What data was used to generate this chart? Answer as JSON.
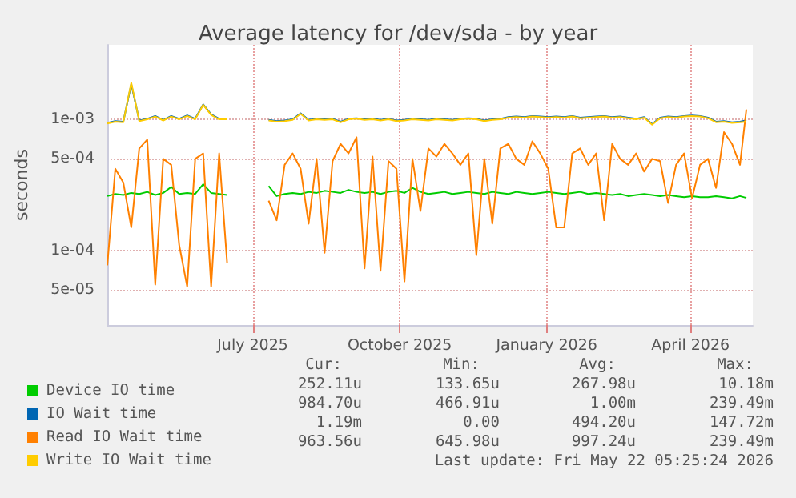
{
  "chart_data": {
    "type": "line",
    "title": "Average latency for /dev/sda - by year",
    "ylabel": "seconds",
    "log": "y",
    "grid": true,
    "legend": "bottom left",
    "xlim": [
      "2025-04-16",
      "2026-05-25"
    ],
    "xticks": [
      {
        "value": "2025-07-16",
        "label": "July 2025"
      },
      {
        "value": "2025-10-16",
        "label": "October 2025"
      },
      {
        "value": "2026-01-16",
        "label": "January 2026"
      },
      {
        "value": "2026-04-16",
        "label": "April 2026"
      }
    ],
    "ylim": [
      2.7e-05,
      0.0037
    ],
    "yticks": [
      {
        "value": 5e-05,
        "label": "5e-05"
      },
      {
        "value": 0.0001,
        "label": "1e-04"
      },
      {
        "value": 0.0005,
        "label": "5e-04"
      },
      {
        "value": 0.001,
        "label": "1e-03"
      }
    ],
    "x": [
      "2025-04-16",
      "2025-04-21",
      "2025-04-26",
      "2025-05-01",
      "2025-05-06",
      "2025-05-11",
      "2025-05-16",
      "2025-05-21",
      "2025-05-26",
      "2025-05-31",
      "2025-06-05",
      "2025-06-10",
      "2025-06-15",
      "2025-06-20",
      "2025-06-25",
      "2025-06-30",
      "2025-07-12",
      "2025-07-26",
      "2025-07-31",
      "2025-08-05",
      "2025-08-10",
      "2025-08-15",
      "2025-08-20",
      "2025-08-25",
      "2025-08-30",
      "2025-09-04",
      "2025-09-09",
      "2025-09-14",
      "2025-09-19",
      "2025-09-24",
      "2025-09-29",
      "2025-10-04",
      "2025-10-09",
      "2025-10-14",
      "2025-10-19",
      "2025-10-24",
      "2025-10-29",
      "2025-11-03",
      "2025-11-08",
      "2025-11-13",
      "2025-11-18",
      "2025-11-23",
      "2025-11-28",
      "2025-12-03",
      "2025-12-08",
      "2025-12-13",
      "2025-12-18",
      "2025-12-23",
      "2025-12-28",
      "2026-01-02",
      "2026-01-07",
      "2026-01-12",
      "2026-01-17",
      "2026-01-22",
      "2026-01-27",
      "2026-02-01",
      "2026-02-06",
      "2026-02-11",
      "2026-02-16",
      "2026-02-21",
      "2026-02-26",
      "2026-03-03",
      "2026-03-08",
      "2026-03-13",
      "2026-03-18",
      "2026-03-23",
      "2026-03-28",
      "2026-04-02",
      "2026-04-07",
      "2026-04-12",
      "2026-04-17",
      "2026-04-22",
      "2026-04-27",
      "2026-05-02",
      "2026-05-07",
      "2026-05-12",
      "2026-05-17",
      "2026-05-21"
    ],
    "series": [
      {
        "name": "Device IO time",
        "color": "#00cc00",
        "values": [
          0.00026,
          0.00027,
          0.000265,
          0.000275,
          0.00027,
          0.00028,
          0.000265,
          0.000275,
          0.000305,
          0.00027,
          0.000275,
          0.00027,
          0.00032,
          0.000275,
          0.00027,
          0.000265,
          null,
          0.00031,
          0.00026,
          0.00027,
          0.000275,
          0.00027,
          0.00028,
          0.000275,
          0.000285,
          0.00028,
          0.000275,
          0.00029,
          0.00028,
          0.000275,
          0.00028,
          0.00027,
          0.00028,
          0.000285,
          0.000275,
          0.0003,
          0.00028,
          0.00027,
          0.000275,
          0.00028,
          0.00027,
          0.000275,
          0.00028,
          0.000275,
          0.00027,
          0.00028,
          0.000275,
          0.00027,
          0.00028,
          0.000275,
          0.00027,
          0.000275,
          0.00028,
          0.000275,
          0.00027,
          0.000275,
          0.00028,
          0.00027,
          0.000275,
          0.00027,
          0.000265,
          0.00027,
          0.00026,
          0.000265,
          0.00027,
          0.000265,
          0.00026,
          0.000265,
          0.00026,
          0.000255,
          0.00026,
          0.000255,
          0.000255,
          0.00026,
          0.000255,
          0.00025,
          0.00026,
          0.000252
        ]
      },
      {
        "name": "IO Wait time",
        "color": "#0066b3",
        "values": [
          0.00094,
          0.00097,
          0.00096,
          0.00185,
          0.00098,
          0.00101,
          0.00106,
          0.00099,
          0.00106,
          0.00101,
          0.00107,
          0.00101,
          0.0013,
          0.00109,
          0.00101,
          0.00101,
          null,
          0.00099,
          0.00097,
          0.00098,
          0.001,
          0.00111,
          0.00099,
          0.00101,
          0.001,
          0.00101,
          0.00096,
          0.00101,
          0.00102,
          0.001,
          0.00101,
          0.00099,
          0.00101,
          0.00098,
          0.00099,
          0.00101,
          0.001,
          0.00099,
          0.00101,
          0.001,
          0.00099,
          0.00101,
          0.00102,
          0.00101,
          0.00098,
          0.001,
          0.00101,
          0.00104,
          0.00105,
          0.00104,
          0.00106,
          0.00105,
          0.00104,
          0.00105,
          0.00104,
          0.00106,
          0.00103,
          0.00104,
          0.00105,
          0.00106,
          0.00104,
          0.00105,
          0.00103,
          0.00101,
          0.00104,
          0.00092,
          0.00103,
          0.00105,
          0.00104,
          0.00106,
          0.00107,
          0.00106,
          0.00103,
          0.00096,
          0.00097,
          0.00095,
          0.00096,
          0.000985
        ]
      },
      {
        "name": "Read IO Wait time",
        "color": "#ff8000",
        "values": [
          7.7e-05,
          0.00042,
          0.00033,
          0.00015,
          0.0006,
          0.0007,
          5.5e-05,
          0.0005,
          0.00045,
          0.00011,
          5.3e-05,
          0.0005,
          0.00055,
          5.3e-05,
          0.00055,
          8e-05,
          null,
          0.00024,
          0.00017,
          0.00045,
          0.00055,
          0.00042,
          0.00016,
          0.0005,
          9.6e-05,
          0.00048,
          0.00065,
          0.00055,
          0.00073,
          7.3e-05,
          0.00052,
          7e-05,
          0.00048,
          0.00042,
          5.8e-05,
          0.0005,
          0.0002,
          0.0006,
          0.00052,
          0.00065,
          0.00055,
          0.00045,
          0.00055,
          9.2e-05,
          0.0005,
          0.00016,
          0.0006,
          0.00065,
          0.0005,
          0.00045,
          0.00068,
          0.00055,
          0.00042,
          0.00015,
          0.00015,
          0.00055,
          0.0006,
          0.00045,
          0.00055,
          0.00017,
          0.00065,
          0.0005,
          0.00045,
          0.00055,
          0.0004,
          0.0005,
          0.00048,
          0.00023,
          0.00045,
          0.00055,
          0.00025,
          0.00045,
          0.0005,
          0.0003,
          0.0008,
          0.00065,
          0.00045,
          0.00119
        ]
      },
      {
        "name": "Write IO Wait time",
        "color": "#ffcc00",
        "values": [
          0.00093,
          0.00096,
          0.00095,
          0.0019,
          0.00097,
          0.001,
          0.00105,
          0.00098,
          0.00105,
          0.001,
          0.00106,
          0.001,
          0.00129,
          0.00108,
          0.001,
          0.001,
          null,
          0.00098,
          0.00096,
          0.00097,
          0.00099,
          0.0011,
          0.00098,
          0.001,
          0.00099,
          0.001,
          0.00095,
          0.001,
          0.00101,
          0.00099,
          0.001,
          0.00098,
          0.001,
          0.00097,
          0.00098,
          0.001,
          0.00099,
          0.00098,
          0.001,
          0.00099,
          0.00098,
          0.001,
          0.00101,
          0.001,
          0.00097,
          0.00099,
          0.001,
          0.00103,
          0.00104,
          0.00103,
          0.00105,
          0.00104,
          0.00103,
          0.00104,
          0.00103,
          0.00105,
          0.00102,
          0.00103,
          0.00104,
          0.00105,
          0.00103,
          0.00104,
          0.00102,
          0.001,
          0.00103,
          0.00091,
          0.00102,
          0.00104,
          0.00103,
          0.00105,
          0.00106,
          0.00105,
          0.00102,
          0.00095,
          0.00096,
          0.00094,
          0.00095,
          0.00096
        ]
      }
    ],
    "annotations": [
      "Cur:",
      "Min:",
      "Avg:",
      "Max:",
      "252.11u",
      "133.65u",
      "267.98u",
      "10.18m",
      "984.70u",
      "466.91u",
      "1.00m",
      "239.49m",
      "1.19m",
      "0.00",
      "494.20u",
      "147.72m",
      "963.56u",
      "645.98u",
      "997.24u",
      "239.49m",
      "Last update: Fri May 22 05:25:24 2026"
    ]
  }
}
